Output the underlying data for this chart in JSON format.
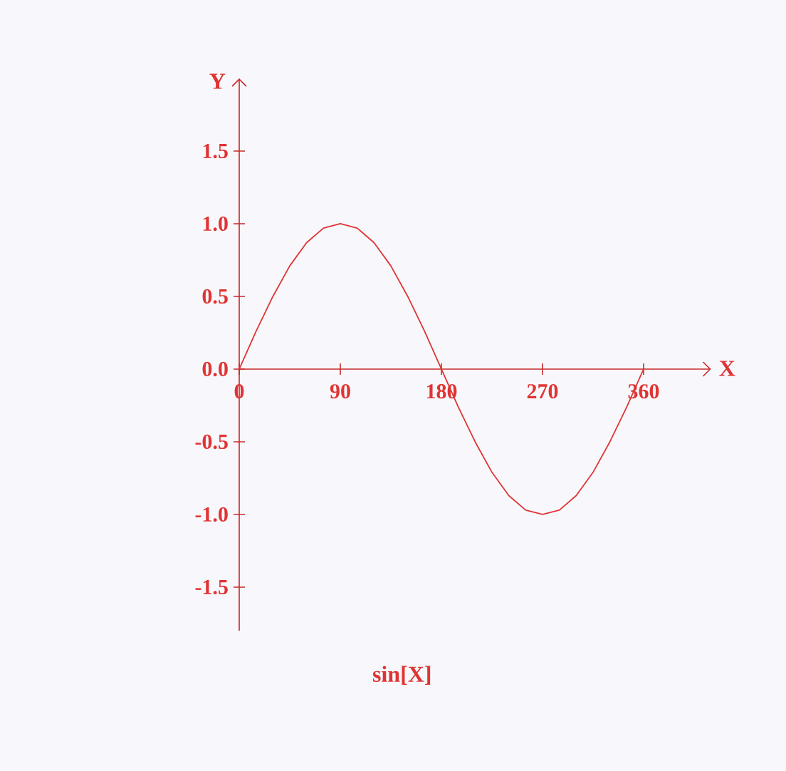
{
  "chart_data": {
    "type": "line",
    "title": "sin[X]",
    "xlabel": "X",
    "ylabel": "Y",
    "color": "#e03434",
    "x": [
      0,
      15,
      30,
      45,
      60,
      75,
      90,
      105,
      120,
      135,
      150,
      165,
      180,
      195,
      210,
      225,
      240,
      255,
      270,
      285,
      300,
      315,
      330,
      345,
      360
    ],
    "values": [
      0,
      0.26,
      0.5,
      0.71,
      0.87,
      0.97,
      1,
      0.97,
      0.87,
      0.71,
      0.5,
      0.26,
      0,
      -0.26,
      -0.5,
      -0.71,
      -0.87,
      -0.97,
      -1,
      -0.97,
      -0.87,
      -0.71,
      -0.5,
      -0.26,
      0
    ],
    "xlim": [
      0,
      420
    ],
    "ylim": [
      -1.8,
      2.0
    ],
    "xticks": [
      0,
      90,
      180,
      270,
      360
    ],
    "yticks": [
      {
        "value": -1.5,
        "label": "-1.5"
      },
      {
        "value": -1,
        "label": "-1.0"
      },
      {
        "value": -0.5,
        "label": "-0.5"
      },
      {
        "value": 0,
        "label": "0.0"
      },
      {
        "value": 0.5,
        "label": "0.5"
      },
      {
        "value": 1,
        "label": "1.0"
      },
      {
        "value": 1.5,
        "label": "1.5"
      }
    ]
  }
}
